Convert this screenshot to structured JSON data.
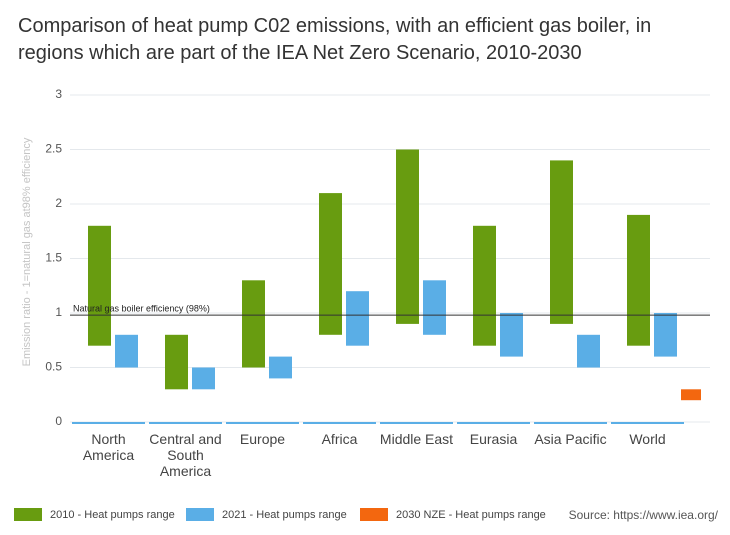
{
  "chart_data": {
    "type": "range-bar",
    "title": "Comparison of heat pump C02 emissions, with an efficient gas boiler, in regions which are part of the IEA Net Zero Scenario, 2010-2030",
    "y_label": "Emission  ratio - 1=natural gas at98% efficiency",
    "categories": [
      "North America",
      "Central and South America",
      "Europe",
      "Africa",
      "Middle East",
      "Eurasia",
      "Asia Pacific",
      "World"
    ],
    "series": [
      {
        "name": "2010 - Heat pumps range",
        "color": "#689c10",
        "values": [
          [
            0.7,
            1.8
          ],
          [
            0.3,
            0.8
          ],
          [
            0.5,
            1.3
          ],
          [
            0.8,
            2.1
          ],
          [
            0.9,
            2.5
          ],
          [
            0.7,
            1.8
          ],
          [
            0.9,
            2.4
          ],
          [
            0.7,
            1.9
          ]
        ]
      },
      {
        "name": "2021 - Heat pumps range",
        "color": "#5aaee6",
        "values": [
          [
            0.5,
            0.8
          ],
          [
            0.3,
            0.5
          ],
          [
            0.4,
            0.6
          ],
          [
            0.7,
            1.2
          ],
          [
            0.8,
            1.3
          ],
          [
            0.6,
            1.0
          ],
          [
            0.5,
            0.8
          ],
          [
            0.6,
            1.0
          ]
        ]
      },
      {
        "name": "2030 NZE - Heat pumps range",
        "color": "#f3670f",
        "values": [
          null,
          null,
          null,
          null,
          null,
          null,
          null,
          [
            0.2,
            0.3
          ]
        ]
      }
    ],
    "reference_line": {
      "value": 0.98,
      "label": "Natural gas boiler efficiency (98%)"
    },
    "ylim": [
      0,
      3
    ],
    "yticks": [
      0,
      0.5,
      1,
      1.5,
      2,
      2.5,
      3
    ],
    "grid": true,
    "source": "Source: https://www.iea.org/"
  }
}
